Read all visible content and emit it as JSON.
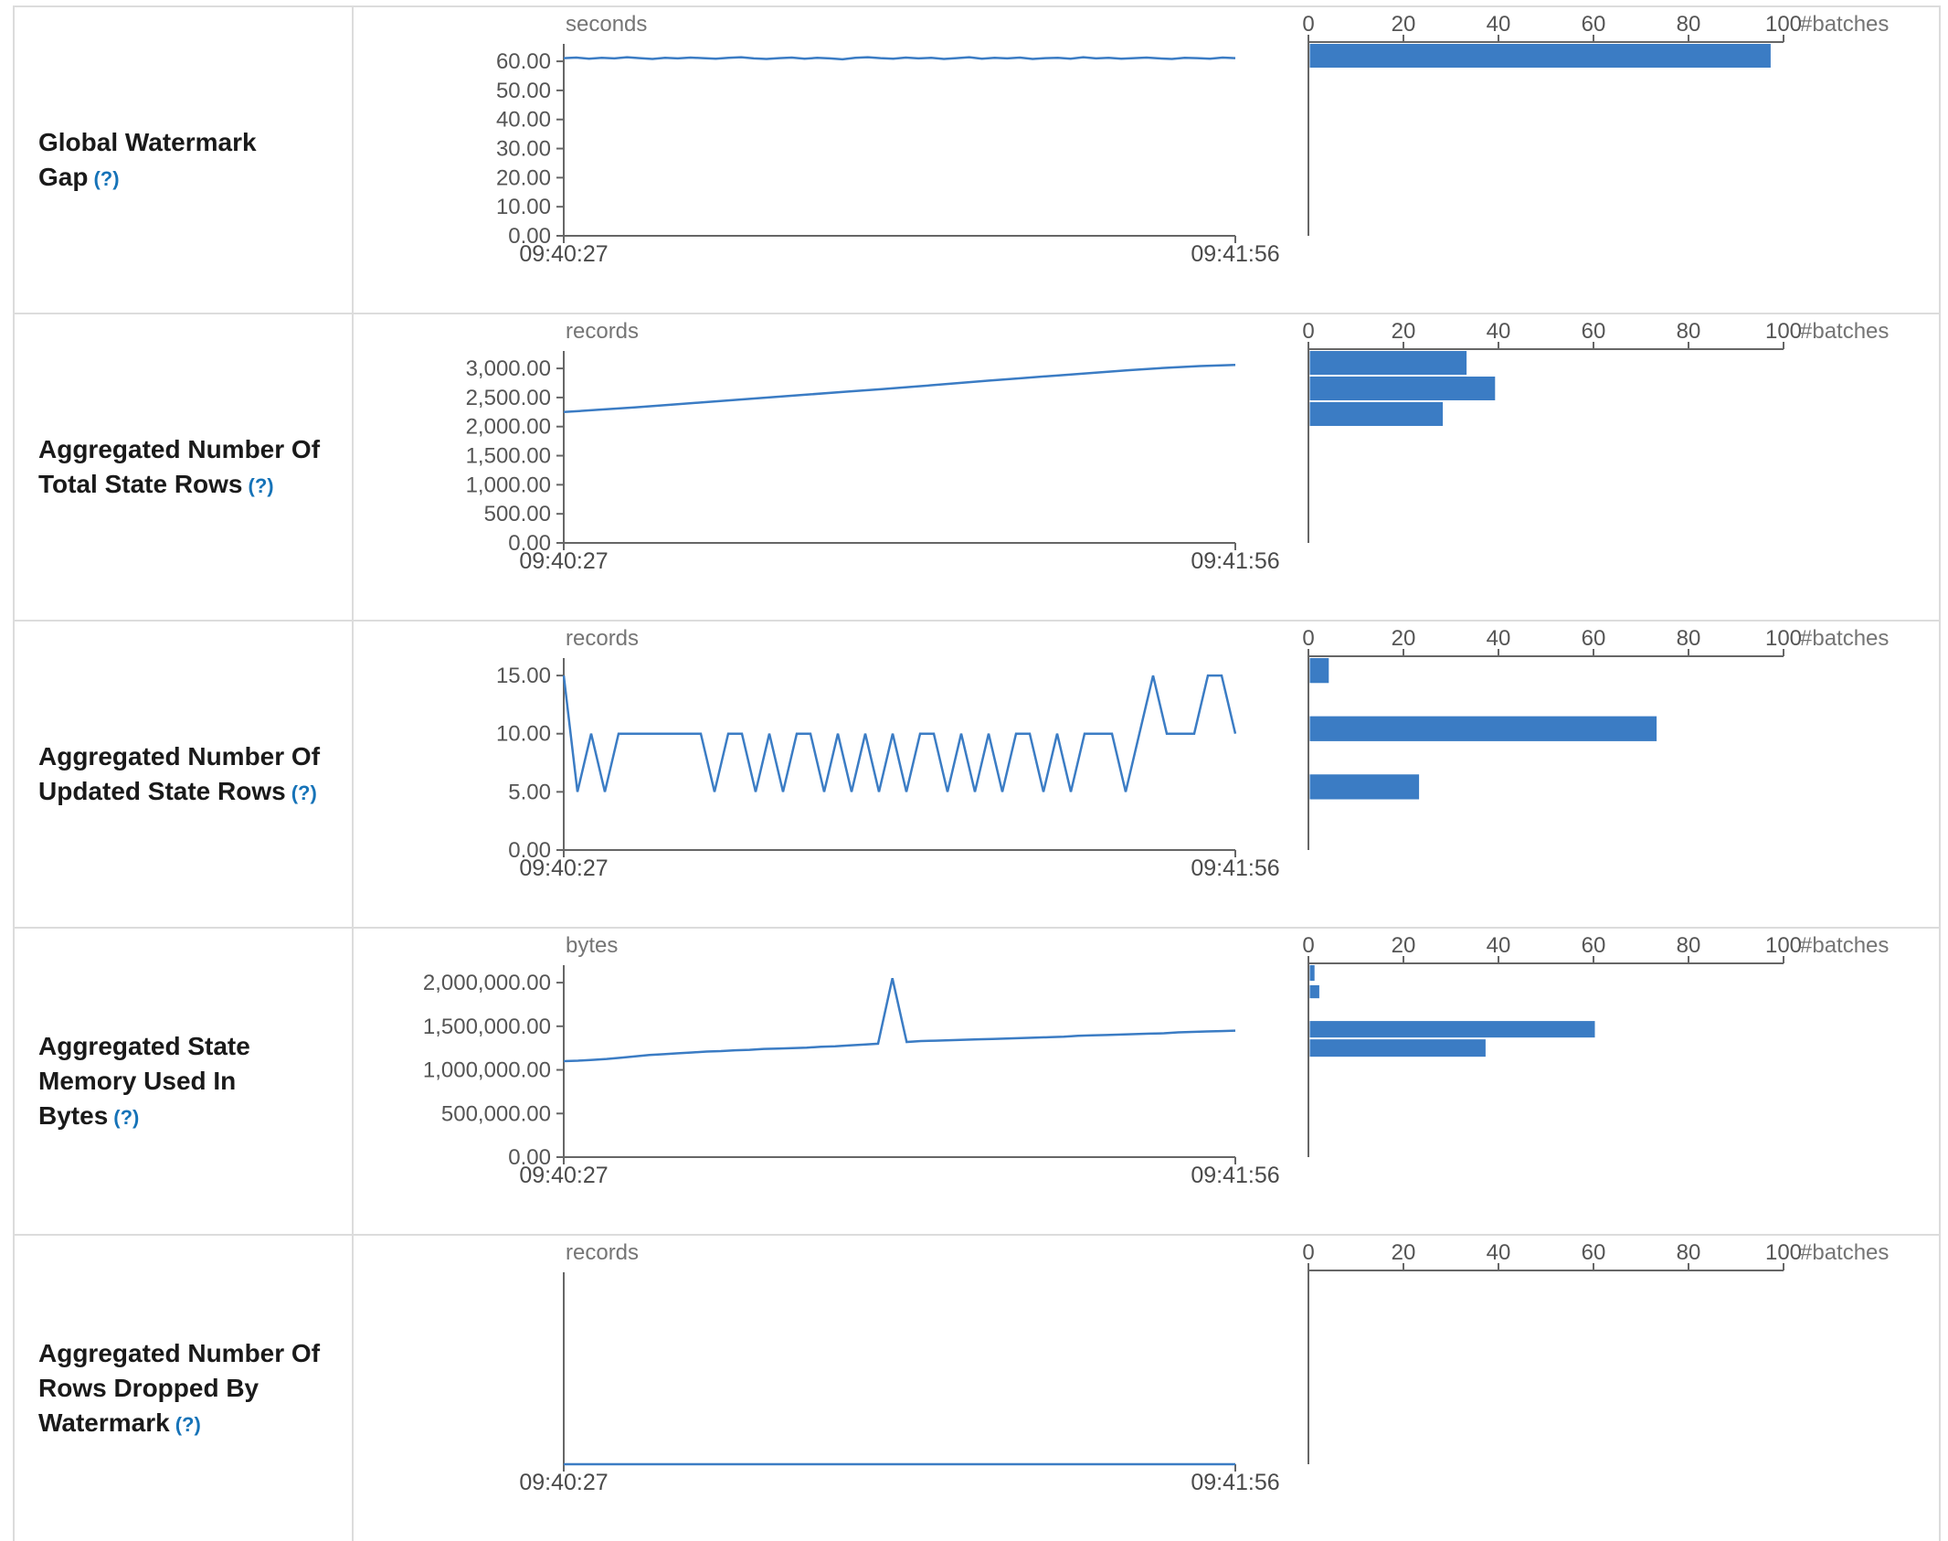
{
  "colors": {
    "accent": "#3b7cc4",
    "axis": "#666666",
    "tick_text": "#555555",
    "unit_text": "#757575",
    "help_link": "#1673b8",
    "border": "#dcdcdc"
  },
  "chart_data": [
    {
      "name": "Global Watermark Gap",
      "help": "(?)",
      "y_domain_max": 66,
      "timeline": {
        "type": "line",
        "unit": "seconds",
        "x_start": "09:40:27",
        "x_end": "09:41:56",
        "y_ticks": [
          {
            "value": 0,
            "label": "0.00"
          },
          {
            "value": 10,
            "label": "10.00"
          },
          {
            "value": 20,
            "label": "20.00"
          },
          {
            "value": 30,
            "label": "30.00"
          },
          {
            "value": 40,
            "label": "40.00"
          },
          {
            "value": 50,
            "label": "50.00"
          },
          {
            "value": 60,
            "label": "60.00"
          }
        ],
        "values": [
          61.1,
          61.3,
          60.9,
          61.2,
          61.0,
          61.4,
          61.1,
          60.8,
          61.2,
          61.0,
          61.3,
          61.1,
          60.9,
          61.2,
          61.4,
          61.0,
          60.8,
          61.1,
          61.3,
          60.9,
          61.2,
          61.0,
          60.7,
          61.2,
          61.4,
          61.1,
          60.9,
          61.3,
          61.0,
          61.2,
          60.8,
          61.1,
          61.4,
          60.9,
          61.2,
          61.0,
          61.3,
          60.8,
          61.1,
          61.2,
          60.9,
          61.4,
          61.0,
          61.2,
          60.9,
          61.1,
          61.3,
          61.0,
          60.8,
          61.2,
          61.1,
          60.9,
          61.3,
          61.1
        ]
      },
      "histogram": {
        "type": "bar",
        "x_label": "#batches",
        "x_ticks": [
          0,
          20,
          40,
          60,
          80,
          100
        ],
        "bins": [
          {
            "lo": 57.2,
            "hi": 66,
            "count": 97
          }
        ]
      }
    },
    {
      "name": "Aggregated Number Of Total State Rows",
      "help": "(?)",
      "y_domain_max": 3300,
      "timeline": {
        "type": "line",
        "unit": "records",
        "x_start": "09:40:27",
        "x_end": "09:41:56",
        "y_ticks": [
          {
            "value": 0,
            "label": "0.00"
          },
          {
            "value": 500,
            "label": "500.00"
          },
          {
            "value": 1000,
            "label": "1,000.00"
          },
          {
            "value": 1500,
            "label": "1,500.00"
          },
          {
            "value": 2000,
            "label": "2,000.00"
          },
          {
            "value": 2500,
            "label": "2,500.00"
          },
          {
            "value": 3000,
            "label": "3,000.00"
          }
        ],
        "values": [
          2250,
          2290,
          2330,
          2375,
          2420,
          2465,
          2510,
          2555,
          2600,
          2645,
          2690,
          2740,
          2790,
          2835,
          2880,
          2925,
          2970,
          3010,
          3040,
          3060
        ]
      },
      "histogram": {
        "type": "bar",
        "x_label": "#batches",
        "x_ticks": [
          0,
          20,
          40,
          60,
          80,
          100
        ],
        "bins": [
          {
            "lo": 2860,
            "hi": 3300,
            "count": 33
          },
          {
            "lo": 2420,
            "hi": 2860,
            "count": 39
          },
          {
            "lo": 1980,
            "hi": 2420,
            "count": 28
          }
        ]
      }
    },
    {
      "name": "Aggregated Number Of Updated State Rows",
      "help": "(?)",
      "y_domain_max": 16.5,
      "timeline": {
        "type": "line",
        "unit": "records",
        "x_start": "09:40:27",
        "x_end": "09:41:56",
        "y_ticks": [
          {
            "value": 0,
            "label": "0.00"
          },
          {
            "value": 5,
            "label": "5.00"
          },
          {
            "value": 10,
            "label": "10.00"
          },
          {
            "value": 15,
            "label": "15.00"
          }
        ],
        "values": [
          15,
          5,
          10,
          5,
          10,
          10,
          10,
          10,
          10,
          10,
          10,
          5,
          10,
          10,
          5,
          10,
          5,
          10,
          10,
          5,
          10,
          5,
          10,
          5,
          10,
          5,
          10,
          10,
          5,
          10,
          5,
          10,
          5,
          10,
          10,
          5,
          10,
          5,
          10,
          10,
          10,
          5,
          10,
          15,
          10,
          10,
          10,
          15,
          15,
          10
        ]
      },
      "histogram": {
        "type": "bar",
        "x_label": "#batches",
        "x_ticks": [
          0,
          20,
          40,
          60,
          80,
          100
        ],
        "bins": [
          {
            "lo": 14.2,
            "hi": 16.5,
            "count": 4
          },
          {
            "lo": 9.2,
            "hi": 11.5,
            "count": 73
          },
          {
            "lo": 4.2,
            "hi": 6.5,
            "count": 23
          }
        ]
      }
    },
    {
      "name": "Aggregated State Memory Used In Bytes",
      "help": "(?)",
      "y_domain_max": 2200000,
      "timeline": {
        "type": "line",
        "unit": "bytes",
        "x_start": "09:40:27",
        "x_end": "09:41:56",
        "y_ticks": [
          {
            "value": 0,
            "label": "0.00"
          },
          {
            "value": 500000,
            "label": "500,000.00"
          },
          {
            "value": 1000000,
            "label": "1,000,000.00"
          },
          {
            "value": 1500000,
            "label": "1,500,000.00"
          },
          {
            "value": 2000000,
            "label": "2,000,000.00"
          }
        ],
        "values": [
          1100000,
          1105000,
          1115000,
          1125000,
          1140000,
          1155000,
          1170000,
          1180000,
          1190000,
          1200000,
          1210000,
          1215000,
          1225000,
          1230000,
          1240000,
          1245000,
          1250000,
          1255000,
          1265000,
          1270000,
          1280000,
          1290000,
          1300000,
          2050000,
          1320000,
          1330000,
          1335000,
          1340000,
          1345000,
          1350000,
          1355000,
          1360000,
          1365000,
          1370000,
          1375000,
          1380000,
          1390000,
          1395000,
          1400000,
          1405000,
          1410000,
          1415000,
          1420000,
          1430000,
          1435000,
          1440000,
          1445000,
          1450000
        ]
      },
      "histogram": {
        "type": "bar",
        "x_label": "#batches",
        "x_ticks": [
          0,
          20,
          40,
          60,
          80,
          100
        ],
        "bins": [
          {
            "lo": 2000000,
            "hi": 2200000,
            "count": 1
          },
          {
            "lo": 1800000,
            "hi": 1970000,
            "count": 2
          },
          {
            "lo": 1350000,
            "hi": 1560000,
            "count": 60
          },
          {
            "lo": 1130000,
            "hi": 1350000,
            "count": 37
          }
        ]
      }
    },
    {
      "name": "Aggregated Number Of Rows Dropped By Watermark",
      "help": "(?)",
      "y_domain_max": 1,
      "timeline": {
        "type": "line",
        "unit": "records",
        "x_start": "09:40:27",
        "x_end": "09:41:56",
        "y_ticks": [],
        "values": [
          0,
          0
        ]
      },
      "histogram": {
        "type": "bar",
        "x_label": "#batches",
        "x_ticks": [
          0,
          20,
          40,
          60,
          80,
          100
        ],
        "bins": []
      }
    }
  ]
}
